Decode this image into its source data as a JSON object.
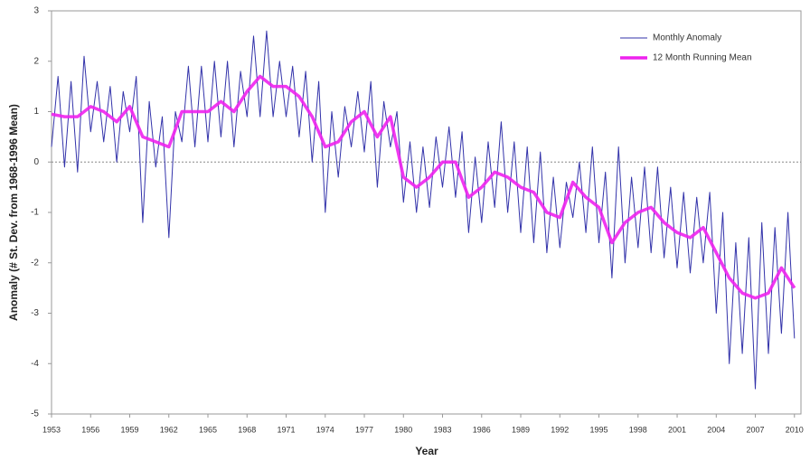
{
  "chart_data": {
    "type": "line",
    "xlabel": "Year",
    "ylabel": "Anomaly (# St. Dev. from 1968-1996 Mean)",
    "xlim": [
      1953,
      2010.5
    ],
    "ylim": [
      -5,
      3
    ],
    "xticks": [
      1953,
      1956,
      1959,
      1962,
      1965,
      1968,
      1971,
      1974,
      1977,
      1980,
      1983,
      1986,
      1989,
      1992,
      1995,
      1998,
      2001,
      2004,
      2007,
      2010
    ],
    "yticks": [
      -5,
      -4,
      -3,
      -2,
      -1,
      0,
      1,
      2,
      3
    ],
    "legend": "top-right",
    "series": [
      {
        "name": "Monthly Anomaly",
        "color": "#3333aa",
        "x": [
          1953,
          1953.5,
          1954,
          1954.5,
          1955,
          1955.5,
          1956,
          1956.5,
          1957,
          1957.5,
          1958,
          1958.5,
          1959,
          1959.5,
          1960,
          1960.5,
          1961,
          1961.5,
          1962,
          1962.5,
          1963,
          1963.5,
          1964,
          1964.5,
          1965,
          1965.5,
          1966,
          1966.5,
          1967,
          1967.5,
          1968,
          1968.5,
          1969,
          1969.5,
          1970,
          1970.5,
          1971,
          1971.5,
          1972,
          1972.5,
          1973,
          1973.5,
          1974,
          1974.5,
          1975,
          1975.5,
          1976,
          1976.5,
          1977,
          1977.5,
          1978,
          1978.5,
          1979,
          1979.5,
          1980,
          1980.5,
          1981,
          1981.5,
          1982,
          1982.5,
          1983,
          1983.5,
          1984,
          1984.5,
          1985,
          1985.5,
          1986,
          1986.5,
          1987,
          1987.5,
          1988,
          1988.5,
          1989,
          1989.5,
          1990,
          1990.5,
          1991,
          1991.5,
          1992,
          1992.5,
          1993,
          1993.5,
          1994,
          1994.5,
          1995,
          1995.5,
          1996,
          1996.5,
          1997,
          1997.5,
          1998,
          1998.5,
          1999,
          1999.5,
          2000,
          2000.5,
          2001,
          2001.5,
          2002,
          2002.5,
          2003,
          2003.5,
          2004,
          2004.5,
          2005,
          2005.5,
          2006,
          2006.5,
          2007,
          2007.5,
          2008,
          2008.5,
          2009,
          2009.5,
          2010
        ],
        "values": [
          0.3,
          1.7,
          -0.1,
          1.6,
          -0.2,
          2.1,
          0.6,
          1.6,
          0.4,
          1.5,
          0.0,
          1.4,
          0.6,
          1.7,
          -1.2,
          1.2,
          -0.1,
          0.9,
          -1.5,
          1.0,
          0.4,
          1.9,
          0.3,
          1.9,
          0.4,
          2.0,
          0.5,
          2.0,
          0.3,
          1.8,
          0.9,
          2.5,
          0.9,
          2.6,
          0.9,
          2.0,
          0.9,
          1.9,
          0.5,
          1.8,
          0.0,
          1.6,
          -1.0,
          1.0,
          -0.3,
          1.1,
          0.3,
          1.4,
          0.2,
          1.6,
          -0.5,
          1.2,
          0.3,
          1.0,
          -0.8,
          0.4,
          -1.0,
          0.3,
          -0.9,
          0.5,
          -0.5,
          0.7,
          -0.7,
          0.6,
          -1.4,
          0.1,
          -1.2,
          0.4,
          -0.9,
          0.8,
          -1.0,
          0.4,
          -1.4,
          0.3,
          -1.6,
          0.2,
          -1.8,
          -0.3,
          -1.7,
          -0.4,
          -1.1,
          0.0,
          -1.4,
          0.3,
          -1.6,
          -0.2,
          -2.3,
          0.3,
          -2.0,
          -0.3,
          -1.7,
          -0.1,
          -1.8,
          -0.1,
          -1.9,
          -0.5,
          -2.1,
          -0.6,
          -2.2,
          -0.7,
          -2.0,
          -0.6,
          -3.0,
          -1.0,
          -4.0,
          -1.6,
          -3.8,
          -1.5,
          -4.5,
          -1.2,
          -3.8,
          -1.3,
          -3.4,
          -1.0,
          -3.5
        ]
      },
      {
        "name": "12 Month Running Mean",
        "color": "#ee22ee",
        "x": [
          1953,
          1954,
          1955,
          1956,
          1957,
          1958,
          1959,
          1960,
          1961,
          1962,
          1963,
          1964,
          1965,
          1966,
          1967,
          1968,
          1969,
          1970,
          1971,
          1972,
          1973,
          1974,
          1975,
          1976,
          1977,
          1978,
          1979,
          1980,
          1981,
          1982,
          1983,
          1984,
          1985,
          1986,
          1987,
          1988,
          1989,
          1990,
          1991,
          1992,
          1993,
          1994,
          1995,
          1996,
          1997,
          1998,
          1999,
          2000,
          2001,
          2002,
          2003,
          2004,
          2005,
          2006,
          2007,
          2008,
          2009,
          2010
        ],
        "values": [
          0.95,
          0.9,
          0.9,
          1.1,
          1.0,
          0.8,
          1.1,
          0.5,
          0.4,
          0.3,
          1.0,
          1.0,
          1.0,
          1.2,
          1.0,
          1.4,
          1.7,
          1.5,
          1.5,
          1.3,
          0.9,
          0.3,
          0.4,
          0.8,
          1.0,
          0.5,
          0.9,
          -0.3,
          -0.5,
          -0.3,
          0.0,
          0.0,
          -0.7,
          -0.5,
          -0.2,
          -0.3,
          -0.5,
          -0.6,
          -1.0,
          -1.1,
          -0.4,
          -0.7,
          -0.9,
          -1.6,
          -1.2,
          -1.0,
          -0.9,
          -1.2,
          -1.4,
          -1.5,
          -1.3,
          -1.8,
          -2.3,
          -2.6,
          -2.7,
          -2.6,
          -2.1,
          -2.5
        ]
      }
    ]
  }
}
